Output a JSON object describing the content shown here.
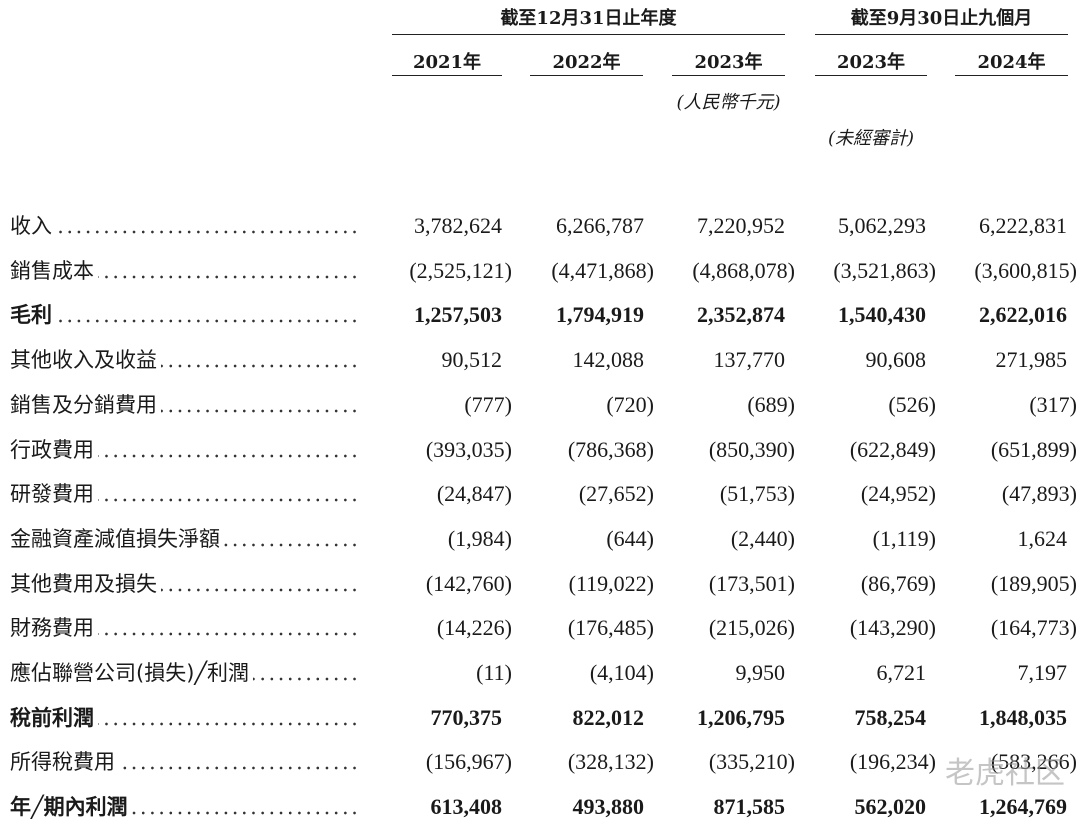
{
  "table": {
    "groups": [
      "截至12月31日止年度",
      "截至9月30日止九個月"
    ],
    "years": [
      "2021年",
      "2022年",
      "2023年",
      "2023年",
      "2024年"
    ],
    "unit_note": "(人民幣千元)",
    "audit_note": "(未經審計)",
    "rows": [
      {
        "label": "收入",
        "bold": false,
        "values": [
          "3,782,624",
          "6,266,787",
          "7,220,952",
          "5,062,293",
          "6,222,831"
        ]
      },
      {
        "label": "銷售成本",
        "bold": false,
        "values": [
          "(2,525,121)",
          "(4,471,868)",
          "(4,868,078)",
          "(3,521,863)",
          "(3,600,815)"
        ]
      },
      {
        "label": "毛利",
        "bold": true,
        "values": [
          "1,257,503",
          "1,794,919",
          "2,352,874",
          "1,540,430",
          "2,622,016"
        ]
      },
      {
        "label": "其他收入及收益",
        "bold": false,
        "values": [
          "90,512",
          "142,088",
          "137,770",
          "90,608",
          "271,985"
        ]
      },
      {
        "label": "銷售及分銷費用",
        "bold": false,
        "values": [
          "(777)",
          "(720)",
          "(689)",
          "(526)",
          "(317)"
        ]
      },
      {
        "label": "行政費用",
        "bold": false,
        "values": [
          "(393,035)",
          "(786,368)",
          "(850,390)",
          "(622,849)",
          "(651,899)"
        ]
      },
      {
        "label": "研發費用",
        "bold": false,
        "values": [
          "(24,847)",
          "(27,652)",
          "(51,753)",
          "(24,952)",
          "(47,893)"
        ]
      },
      {
        "label": "金融資產減值損失淨額",
        "bold": false,
        "values": [
          "(1,984)",
          "(644)",
          "(2,440)",
          "(1,119)",
          "1,624"
        ]
      },
      {
        "label": "其他費用及損失",
        "bold": false,
        "values": [
          "(142,760)",
          "(119,022)",
          "(173,501)",
          "(86,769)",
          "(189,905)"
        ]
      },
      {
        "label": "財務費用",
        "bold": false,
        "values": [
          "(14,226)",
          "(176,485)",
          "(215,026)",
          "(143,290)",
          "(164,773)"
        ]
      },
      {
        "label": "應佔聯營公司(損失)╱利潤",
        "bold": false,
        "values": [
          "(11)",
          "(4,104)",
          "9,950",
          "6,721",
          "7,197"
        ]
      },
      {
        "label": "稅前利潤",
        "bold": true,
        "values": [
          "770,375",
          "822,012",
          "1,206,795",
          "758,254",
          "1,848,035"
        ]
      },
      {
        "label": "所得稅費用",
        "bold": false,
        "values": [
          "(156,967)",
          "(328,132)",
          "(335,210)",
          "(196,234)",
          "(583,266)"
        ]
      },
      {
        "label": "年╱期內利潤",
        "bold": true,
        "values": [
          "613,408",
          "493,880",
          "871,585",
          "562,020",
          "1,264,769"
        ]
      }
    ]
  },
  "watermark": "老虎社区"
}
